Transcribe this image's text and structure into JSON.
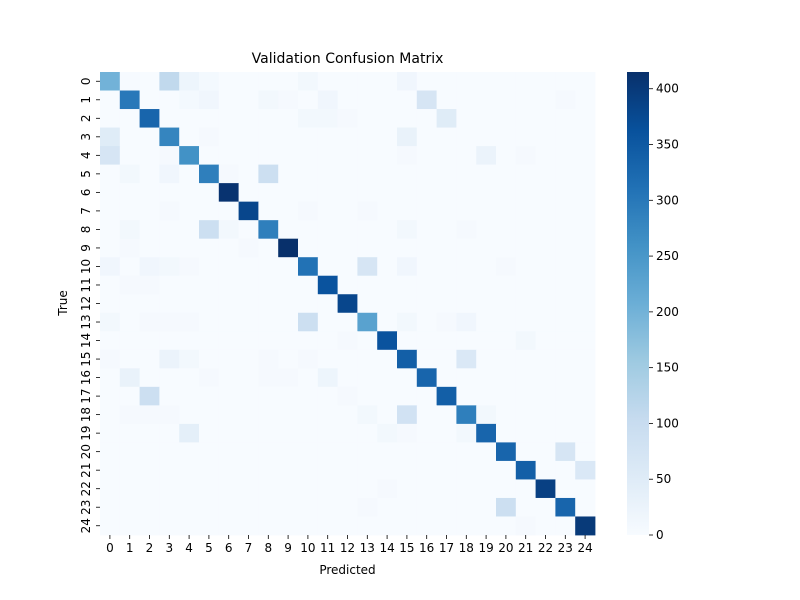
{
  "chart_data": {
    "type": "heatmap",
    "title": "Validation Confusion Matrix",
    "xlabel": "Predicted",
    "ylabel": "True",
    "x_categories": [
      "0",
      "1",
      "2",
      "3",
      "4",
      "5",
      "6",
      "7",
      "8",
      "9",
      "10",
      "11",
      "12",
      "13",
      "14",
      "15",
      "16",
      "17",
      "18",
      "19",
      "20",
      "21",
      "22",
      "23",
      "24"
    ],
    "y_categories": [
      "0",
      "1",
      "2",
      "3",
      "4",
      "5",
      "6",
      "7",
      "8",
      "9",
      "10",
      "11",
      "12",
      "13",
      "14",
      "15",
      "16",
      "17",
      "18",
      "19",
      "20",
      "21",
      "22",
      "23",
      "24"
    ],
    "colormap": "Blues",
    "vmin": 0,
    "vmax": 415,
    "colorbar_ticks": [
      0,
      50,
      100,
      150,
      200,
      250,
      300,
      350,
      400
    ],
    "values": [
      [
        200,
        2,
        0,
        110,
        20,
        8,
        0,
        0,
        0,
        0,
        10,
        0,
        0,
        0,
        0,
        15,
        0,
        0,
        0,
        0,
        0,
        0,
        0,
        0,
        0
      ],
      [
        0,
        300,
        0,
        0,
        8,
        15,
        0,
        0,
        10,
        5,
        0,
        15,
        0,
        0,
        0,
        0,
        70,
        0,
        0,
        0,
        0,
        0,
        0,
        5,
        0
      ],
      [
        0,
        0,
        330,
        0,
        0,
        0,
        0,
        0,
        0,
        0,
        10,
        10,
        5,
        0,
        0,
        0,
        0,
        50,
        0,
        0,
        0,
        0,
        0,
        0,
        0
      ],
      [
        50,
        0,
        0,
        280,
        0,
        5,
        0,
        0,
        0,
        0,
        0,
        0,
        0,
        0,
        0,
        30,
        0,
        0,
        0,
        0,
        0,
        0,
        0,
        0,
        0
      ],
      [
        70,
        0,
        0,
        5,
        260,
        0,
        0,
        0,
        0,
        0,
        0,
        0,
        0,
        0,
        0,
        5,
        0,
        0,
        0,
        25,
        0,
        5,
        0,
        0,
        0
      ],
      [
        0,
        10,
        0,
        15,
        0,
        290,
        5,
        0,
        90,
        0,
        0,
        0,
        0,
        0,
        0,
        0,
        0,
        0,
        0,
        0,
        0,
        0,
        0,
        0,
        0
      ],
      [
        0,
        0,
        0,
        0,
        0,
        0,
        410,
        0,
        0,
        0,
        0,
        0,
        0,
        0,
        0,
        0,
        0,
        0,
        0,
        0,
        0,
        0,
        0,
        0,
        0
      ],
      [
        0,
        0,
        0,
        5,
        0,
        0,
        0,
        380,
        0,
        0,
        5,
        0,
        0,
        5,
        0,
        0,
        0,
        0,
        0,
        0,
        0,
        0,
        0,
        0,
        0
      ],
      [
        0,
        10,
        0,
        0,
        0,
        90,
        10,
        0,
        290,
        0,
        0,
        0,
        0,
        0,
        0,
        10,
        0,
        0,
        5,
        0,
        0,
        0,
        0,
        0,
        0
      ],
      [
        0,
        5,
        0,
        0,
        0,
        0,
        0,
        5,
        0,
        415,
        0,
        0,
        0,
        0,
        0,
        0,
        0,
        0,
        0,
        0,
        0,
        0,
        0,
        0,
        0
      ],
      [
        15,
        0,
        15,
        10,
        5,
        0,
        0,
        0,
        0,
        0,
        310,
        0,
        0,
        70,
        0,
        15,
        0,
        0,
        0,
        0,
        5,
        0,
        0,
        0,
        0
      ],
      [
        0,
        5,
        5,
        0,
        0,
        0,
        0,
        0,
        0,
        0,
        0,
        360,
        0,
        0,
        0,
        0,
        0,
        0,
        0,
        0,
        0,
        0,
        0,
        0,
        0
      ],
      [
        0,
        0,
        0,
        0,
        0,
        0,
        0,
        0,
        0,
        0,
        0,
        0,
        380,
        0,
        0,
        0,
        0,
        0,
        0,
        0,
        0,
        0,
        0,
        0,
        0
      ],
      [
        10,
        0,
        5,
        5,
        5,
        0,
        0,
        0,
        0,
        0,
        90,
        0,
        0,
        230,
        0,
        10,
        0,
        5,
        15,
        0,
        0,
        0,
        0,
        0,
        0
      ],
      [
        0,
        0,
        0,
        0,
        0,
        0,
        0,
        0,
        0,
        0,
        0,
        0,
        5,
        0,
        360,
        0,
        0,
        0,
        0,
        0,
        0,
        10,
        0,
        0,
        0
      ],
      [
        5,
        0,
        0,
        25,
        10,
        0,
        0,
        0,
        5,
        0,
        5,
        0,
        0,
        0,
        0,
        340,
        0,
        0,
        60,
        0,
        0,
        0,
        0,
        0,
        0
      ],
      [
        0,
        30,
        0,
        0,
        0,
        5,
        0,
        0,
        5,
        5,
        0,
        20,
        0,
        0,
        0,
        0,
        330,
        0,
        0,
        0,
        0,
        0,
        0,
        0,
        0
      ],
      [
        0,
        0,
        90,
        0,
        0,
        0,
        0,
        0,
        0,
        0,
        0,
        0,
        5,
        0,
        0,
        0,
        0,
        340,
        0,
        0,
        0,
        0,
        0,
        0,
        0
      ],
      [
        0,
        5,
        5,
        5,
        0,
        0,
        0,
        0,
        0,
        0,
        0,
        0,
        0,
        10,
        0,
        80,
        0,
        0,
        290,
        10,
        0,
        0,
        0,
        0,
        0
      ],
      [
        0,
        0,
        0,
        0,
        40,
        0,
        0,
        0,
        0,
        0,
        0,
        0,
        0,
        0,
        10,
        5,
        0,
        0,
        10,
        330,
        0,
        0,
        0,
        0,
        0
      ],
      [
        0,
        0,
        0,
        0,
        0,
        0,
        0,
        0,
        0,
        0,
        0,
        0,
        0,
        0,
        0,
        0,
        0,
        0,
        0,
        0,
        330,
        0,
        0,
        70,
        0
      ],
      [
        0,
        0,
        0,
        0,
        0,
        0,
        0,
        0,
        0,
        0,
        0,
        0,
        0,
        0,
        0,
        0,
        0,
        0,
        0,
        0,
        0,
        340,
        0,
        0,
        60
      ],
      [
        0,
        0,
        0,
        0,
        0,
        0,
        0,
        0,
        0,
        0,
        0,
        0,
        0,
        0,
        5,
        0,
        0,
        0,
        0,
        0,
        0,
        0,
        390,
        0,
        0
      ],
      [
        0,
        0,
        0,
        0,
        0,
        0,
        0,
        0,
        0,
        0,
        0,
        0,
        0,
        5,
        0,
        0,
        0,
        0,
        0,
        0,
        90,
        0,
        0,
        330,
        0
      ],
      [
        0,
        0,
        0,
        0,
        0,
        0,
        0,
        0,
        0,
        0,
        0,
        0,
        0,
        0,
        0,
        0,
        0,
        0,
        0,
        0,
        0,
        5,
        0,
        0,
        400
      ]
    ]
  }
}
